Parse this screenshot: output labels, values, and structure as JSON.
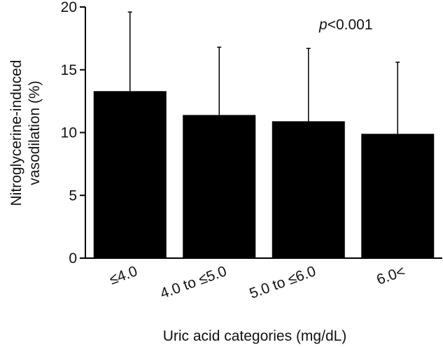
{
  "chart_data": {
    "type": "bar",
    "categories": [
      "≤4.0",
      "4.0 to ≤5.0",
      "5.0 to ≤6.0",
      "6.0<"
    ],
    "values": [
      13.3,
      11.4,
      10.9,
      9.9
    ],
    "error_upper": [
      19.6,
      16.8,
      16.7,
      15.6
    ],
    "xlabel": "Uric acid categories (mg/dL)",
    "ylabel_lines": [
      "Nitroglycerine-induced",
      "vasodilation (%)"
    ],
    "ylim": [
      0,
      20
    ],
    "yticks": [
      0,
      5,
      10,
      15,
      20
    ],
    "grid": false,
    "legend": "none",
    "annotation": {
      "p_symbol": "p",
      "p_text": "<0.001"
    },
    "colors": {
      "bar": "#000000",
      "axis": "#000000"
    }
  }
}
